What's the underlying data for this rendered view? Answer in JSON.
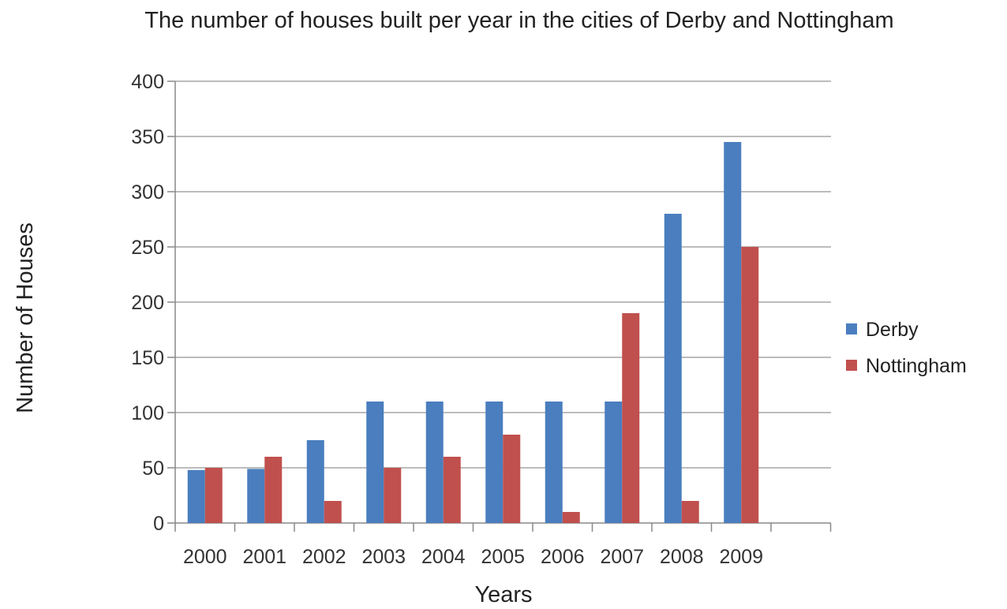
{
  "chart_data": {
    "type": "bar",
    "title": "The number of houses built per  year in the cities of Derby and Nottingham",
    "xlabel": "Years",
    "ylabel": "Number of Houses",
    "categories": [
      "2000",
      "2001",
      "2002",
      "2003",
      "2004",
      "2005",
      "2006",
      "2007",
      "2008",
      "2009"
    ],
    "series": [
      {
        "name": "Derby",
        "color": "#4a7ebf",
        "values": [
          48,
          49,
          75,
          110,
          110,
          110,
          110,
          110,
          280,
          345
        ]
      },
      {
        "name": "Nottingham",
        "color": "#c0504d",
        "values": [
          50,
          60,
          20,
          50,
          60,
          80,
          10,
          190,
          20,
          250
        ]
      }
    ],
    "ylim": [
      0,
      400
    ],
    "yticks": [
      "0",
      "50",
      "100",
      "150",
      "200",
      "250",
      "300",
      "350",
      "400"
    ],
    "grid": true,
    "legend": "right",
    "gridline_color": "#a6a6a6"
  }
}
